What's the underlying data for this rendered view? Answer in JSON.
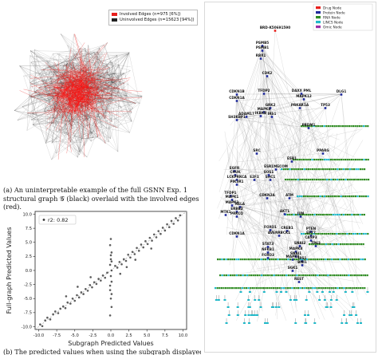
{
  "figure_a": {
    "legend": [
      {
        "label": "Involved Edges (n=975 [6%])",
        "color": "#e8201d"
      },
      {
        "label": "Uninvolved Edges (n=15623 [94%])",
        "color": "#222222"
      }
    ],
    "caption": "(a) An uninterpretable example of the full GSNN Exp.  1 structural graph 𝒢 (black) overlaid with the involved edges (red)."
  },
  "figure_b": {
    "caption": "(b) The predicted values when using the subgraph displayed in",
    "chart_data": {
      "type": "scatter",
      "xlabel": "Subgraph Predicted Values",
      "ylabel": "Full-graph Predicted Values",
      "xlim": [
        -10.5,
        10.5
      ],
      "ylim": [
        -10.5,
        10.5
      ],
      "xticks": [
        "-10.0",
        "-7.5",
        "-5.0",
        "-2.5",
        "0.0",
        "2.5",
        "5.0",
        "7.5",
        "10.0"
      ],
      "yticks": [
        "-10.0",
        "-7.5",
        "-5.0",
        "-2.5",
        "0.0",
        "2.5",
        "5.0",
        "7.5",
        "10.0"
      ],
      "legend": "r2: 0.82",
      "points": [
        [
          -9.8,
          -9.6
        ],
        [
          -9.5,
          -9.9
        ],
        [
          -9.1,
          -8.9
        ],
        [
          -8.8,
          -8.4
        ],
        [
          -8.4,
          -8.7
        ],
        [
          -8.0,
          -7.8
        ],
        [
          -7.7,
          -7.3
        ],
        [
          -7.3,
          -7.6
        ],
        [
          -7.0,
          -6.8
        ],
        [
          -6.6,
          -6.4
        ],
        [
          -6.3,
          -6.7
        ],
        [
          -6.0,
          -5.7
        ],
        [
          -5.6,
          -5.9
        ],
        [
          -5.3,
          -5.0
        ],
        [
          -5.0,
          -5.4
        ],
        [
          -4.7,
          -4.4
        ],
        [
          -4.4,
          -4.8
        ],
        [
          -4.1,
          -3.9
        ],
        [
          -3.8,
          -4.2
        ],
        [
          -3.5,
          -3.3
        ],
        [
          -3.2,
          -3.6
        ],
        [
          -2.9,
          -2.6
        ],
        [
          -2.6,
          -3.0
        ],
        [
          -2.3,
          -2.1
        ],
        [
          -2.0,
          -2.4
        ],
        [
          -1.7,
          -1.5
        ],
        [
          -1.4,
          -1.8
        ],
        [
          -1.1,
          -0.9
        ],
        [
          -0.8,
          -1.3
        ],
        [
          -0.5,
          -0.4
        ],
        [
          -0.1,
          -8.0
        ],
        [
          0.1,
          -6.5
        ],
        [
          0.0,
          -5.0
        ],
        [
          -0.1,
          -3.5
        ],
        [
          0.1,
          -2.0
        ],
        [
          0.0,
          -1.0
        ],
        [
          0.1,
          0.0
        ],
        [
          -0.1,
          1.0
        ],
        [
          0.0,
          2.0
        ],
        [
          0.1,
          3.2
        ],
        [
          -0.1,
          4.5
        ],
        [
          0.0,
          5.6
        ],
        [
          0.1,
          -4.2
        ],
        [
          -0.1,
          -2.7
        ],
        [
          0.0,
          2.7
        ],
        [
          0.1,
          1.6
        ],
        [
          0.6,
          0.8
        ],
        [
          0.9,
          0.5
        ],
        [
          1.2,
          1.5
        ],
        [
          1.5,
          1.1
        ],
        [
          1.8,
          2.0
        ],
        [
          2.1,
          1.7
        ],
        [
          2.4,
          2.8
        ],
        [
          2.7,
          2.3
        ],
        [
          3.0,
          3.3
        ],
        [
          3.3,
          2.9
        ],
        [
          3.6,
          4.0
        ],
        [
          3.9,
          3.5
        ],
        [
          4.2,
          4.6
        ],
        [
          4.5,
          4.1
        ],
        [
          4.8,
          5.2
        ],
        [
          5.1,
          4.7
        ],
        [
          5.4,
          5.8
        ],
        [
          5.7,
          5.3
        ],
        [
          6.0,
          6.4
        ],
        [
          6.3,
          5.9
        ],
        [
          6.6,
          7.0
        ],
        [
          6.9,
          6.5
        ],
        [
          7.2,
          7.6
        ],
        [
          7.5,
          7.1
        ],
        [
          7.8,
          8.2
        ],
        [
          8.1,
          7.7
        ],
        [
          8.4,
          8.8
        ],
        [
          8.7,
          8.3
        ],
        [
          9.0,
          9.3
        ],
        [
          9.3,
          8.9
        ],
        [
          9.6,
          9.8
        ],
        [
          2.2,
          0.6
        ],
        [
          3.4,
          1.9
        ],
        [
          -2.8,
          -1.2
        ],
        [
          -4.6,
          -2.9
        ],
        [
          5.6,
          3.9
        ],
        [
          -6.2,
          -4.6
        ],
        [
          1.3,
          -0.6
        ]
      ]
    }
  },
  "figure_c": {
    "legend": [
      {
        "label": "Drug Node",
        "color": "#e8201d"
      },
      {
        "label": "Protein Node",
        "color": "#1f2a9c"
      },
      {
        "label": "RNA Node",
        "color": "#2e8b22"
      },
      {
        "label": "LINCS Node",
        "color": "#1fb8c8"
      },
      {
        "label": "Omic Node",
        "color": "#9a2fa8"
      }
    ],
    "nodes": [
      "BRD-K50691590",
      "PSMB5",
      "PSMB1",
      "RBX1",
      "CDK2",
      "CDKN1B",
      "TFDP2",
      "DAXX PML",
      "DLG1",
      "CDKN1A",
      "MAPK12",
      "GRK2",
      "PRKAR1A",
      "TP53",
      "MAPK8",
      "IKBKB",
      "SH3KBP1",
      "ADAM17",
      "IRS1",
      "PRDM1",
      "ESR1",
      "SRC",
      "PPARG",
      "EGFR",
      "E2F1",
      "SHC1",
      "ESR1MECOM",
      "CHUK",
      "SOS1",
      "LCKPRKCA",
      "PIK3R1",
      "TFDP1",
      "MAPK1",
      "MAPK3",
      "RELA",
      "ERBB2",
      "CDKN2A",
      "ATM",
      "AKT1",
      "MTK1",
      "JUN",
      "PRKCQ",
      "FOXO1",
      "CREB1",
      "PTEN",
      "CDKN1A",
      "AVENRBCK1",
      "EP77",
      "CASP3",
      "STAT3",
      "SNAI2",
      "TP63",
      "NFKB1",
      "MAPK8",
      "FOXO3",
      "SNAI1",
      "MAPK8",
      "IRS1",
      "BMI1",
      "SGK1",
      "REST"
    ]
  }
}
